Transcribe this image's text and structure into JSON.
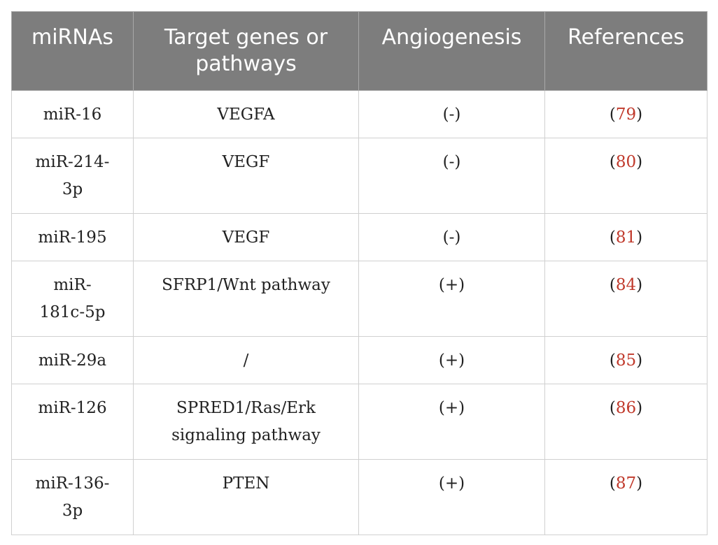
{
  "table": {
    "headers": [
      "miRNAs",
      "Target genes or pathways",
      "Angiogenesis",
      "References"
    ],
    "rows": [
      {
        "mirna": "miR-16",
        "target": "VEGFA",
        "angio": "(-)",
        "ref_open": "(",
        "ref_num": "79",
        "ref_close": ")"
      },
      {
        "mirna": "miR-214-3p",
        "target": "VEGF",
        "angio": "(-)",
        "ref_open": "(",
        "ref_num": "80",
        "ref_close": ")"
      },
      {
        "mirna": "miR-195",
        "target": "VEGF",
        "angio": "(-)",
        "ref_open": "(",
        "ref_num": "81",
        "ref_close": ")"
      },
      {
        "mirna": "miR-181c-5p",
        "target": "SFRP1/Wnt pathway",
        "angio": "(+)",
        "ref_open": "(",
        "ref_num": "84",
        "ref_close": ")"
      },
      {
        "mirna": "miR-29a",
        "target": "/",
        "angio": "(+)",
        "ref_open": "(",
        "ref_num": "85",
        "ref_close": ")"
      },
      {
        "mirna": "miR-126",
        "target": "SPRED1/Ras/Erk signaling pathway",
        "angio": "(+)",
        "ref_open": "(",
        "ref_num": "86",
        "ref_close": ")"
      },
      {
        "mirna": "miR-136-3p",
        "target": "PTEN",
        "angio": "(+)",
        "ref_open": "(",
        "ref_num": "87",
        "ref_close": ")"
      }
    ]
  },
  "colors": {
    "header_bg": "#7d7d7d",
    "header_text": "#ffffff",
    "reference_link": "#c0392b",
    "grid_line": "#d0d0d0"
  }
}
